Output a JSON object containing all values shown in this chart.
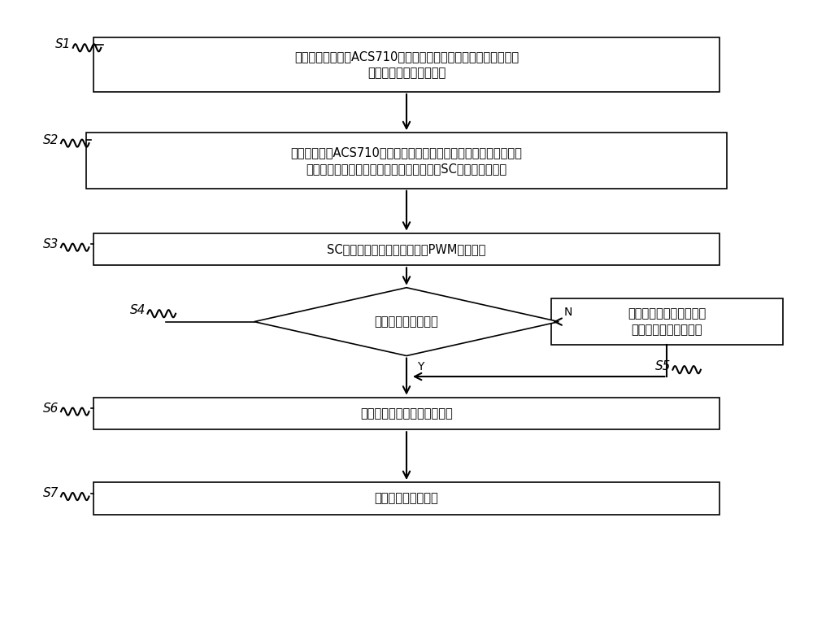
{
  "bg_color": "#ffffff",
  "border_color": "#000000",
  "text_color": "#000000",
  "box_fill": "#ffffff",
  "box_edge": "#000000",
  "arrow_color": "#000000",
  "box1_text": "利用过流检测芯片ACS710检测变频器的输出电流，输出过流时，\n芯片过流故障脚输出电压",
  "box2_text": "过流检测芯片ACS710内部电流源开始下拉芯片过流故障脚的电压，\n下拉至设置保护电压设定值，比较器翻转，SC信号转为低电平",
  "box3_text": "SC信号触发硬件封锁子电路将PWM驱动屏蔽",
  "diamond_text": "变频器输出短路解除",
  "box5_text": "芯片过流使能脚进行下拉\n至变频器输出短路解除",
  "box6_text": "芯片过流故障脚开始充电复位",
  "box7_text": "变频器进行正常工作",
  "yes_label": "Y",
  "no_label": "N",
  "s1_label": "S1",
  "s2_label": "S2",
  "s3_label": "S3",
  "s4_label": "S4",
  "s5_label": "S5",
  "s6_label": "S6",
  "s7_label": "S7",
  "figsize": [
    10,
    7.76
  ],
  "dpi": 100
}
